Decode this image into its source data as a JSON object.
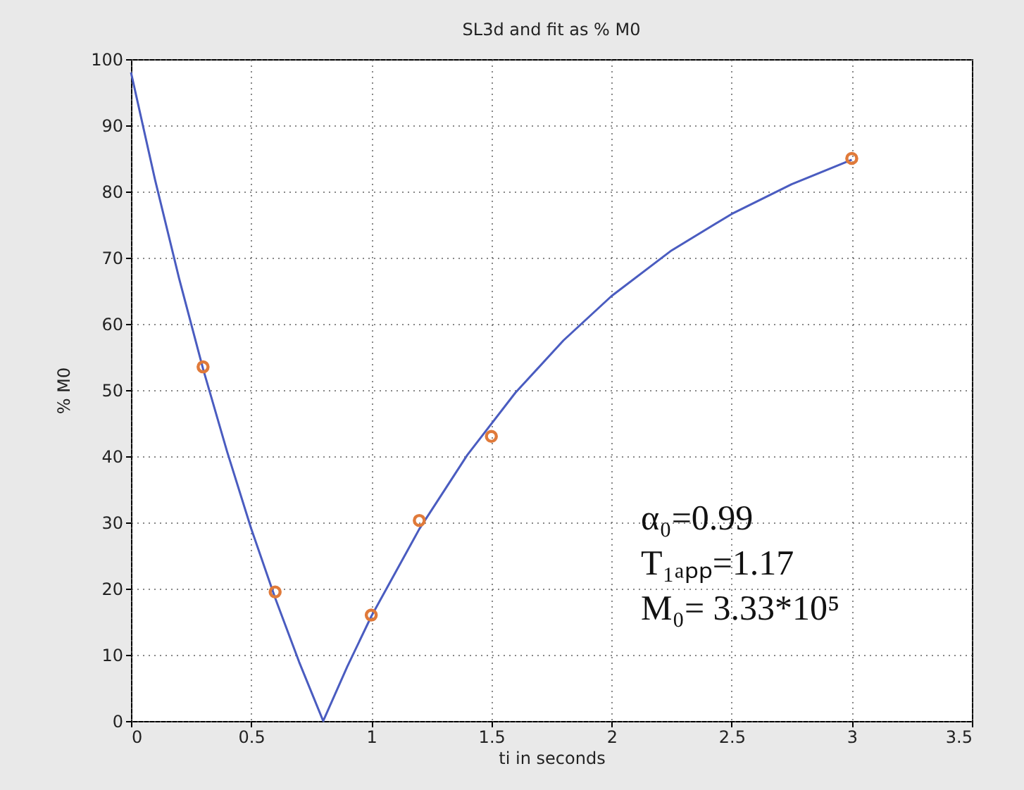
{
  "chart_data": {
    "type": "line",
    "title": "SL3d and fit as % M0",
    "xlabel": "ti in seconds",
    "ylabel": "% M0",
    "xlim": [
      0,
      3.5
    ],
    "xticks": [
      0,
      0.5,
      1,
      1.5,
      2,
      2.5,
      3,
      3.5
    ],
    "ylim": [
      0,
      100
    ],
    "yticks": [
      0,
      10,
      20,
      30,
      40,
      50,
      60,
      70,
      80,
      90,
      100
    ],
    "grid": true,
    "series": [
      {
        "color": "#4a5cc0",
        "marker": "none",
        "line_style": "solid",
        "x": [
          0,
          0.1,
          0.2,
          0.3,
          0.4,
          0.5,
          0.6,
          0.7,
          0.8,
          0.9,
          1.0,
          1.2,
          1.4,
          1.6,
          1.8,
          2.0,
          2.25,
          2.5,
          2.75,
          3.0
        ],
        "values": [
          98,
          81.8,
          66.9,
          53.2,
          40.7,
          29.1,
          18.6,
          8.9,
          0,
          8.2,
          15.8,
          29.0,
          40.2,
          49.6,
          57.5,
          64.2,
          71.1,
          76.6,
          81.1,
          84.8
        ]
      },
      {
        "type": "scatter",
        "color": "#e07a3a",
        "marker": "circle",
        "x": [
          0.3,
          0.6,
          1,
          1.2,
          1.5,
          3
        ],
        "values": [
          53.5,
          19.5,
          16,
          30.3,
          43,
          85
        ]
      }
    ],
    "annotations": [
      "α₀=0.99",
      "T₁ₐₚₚ=1.17",
      "M₀= 3.33*10⁵"
    ]
  }
}
